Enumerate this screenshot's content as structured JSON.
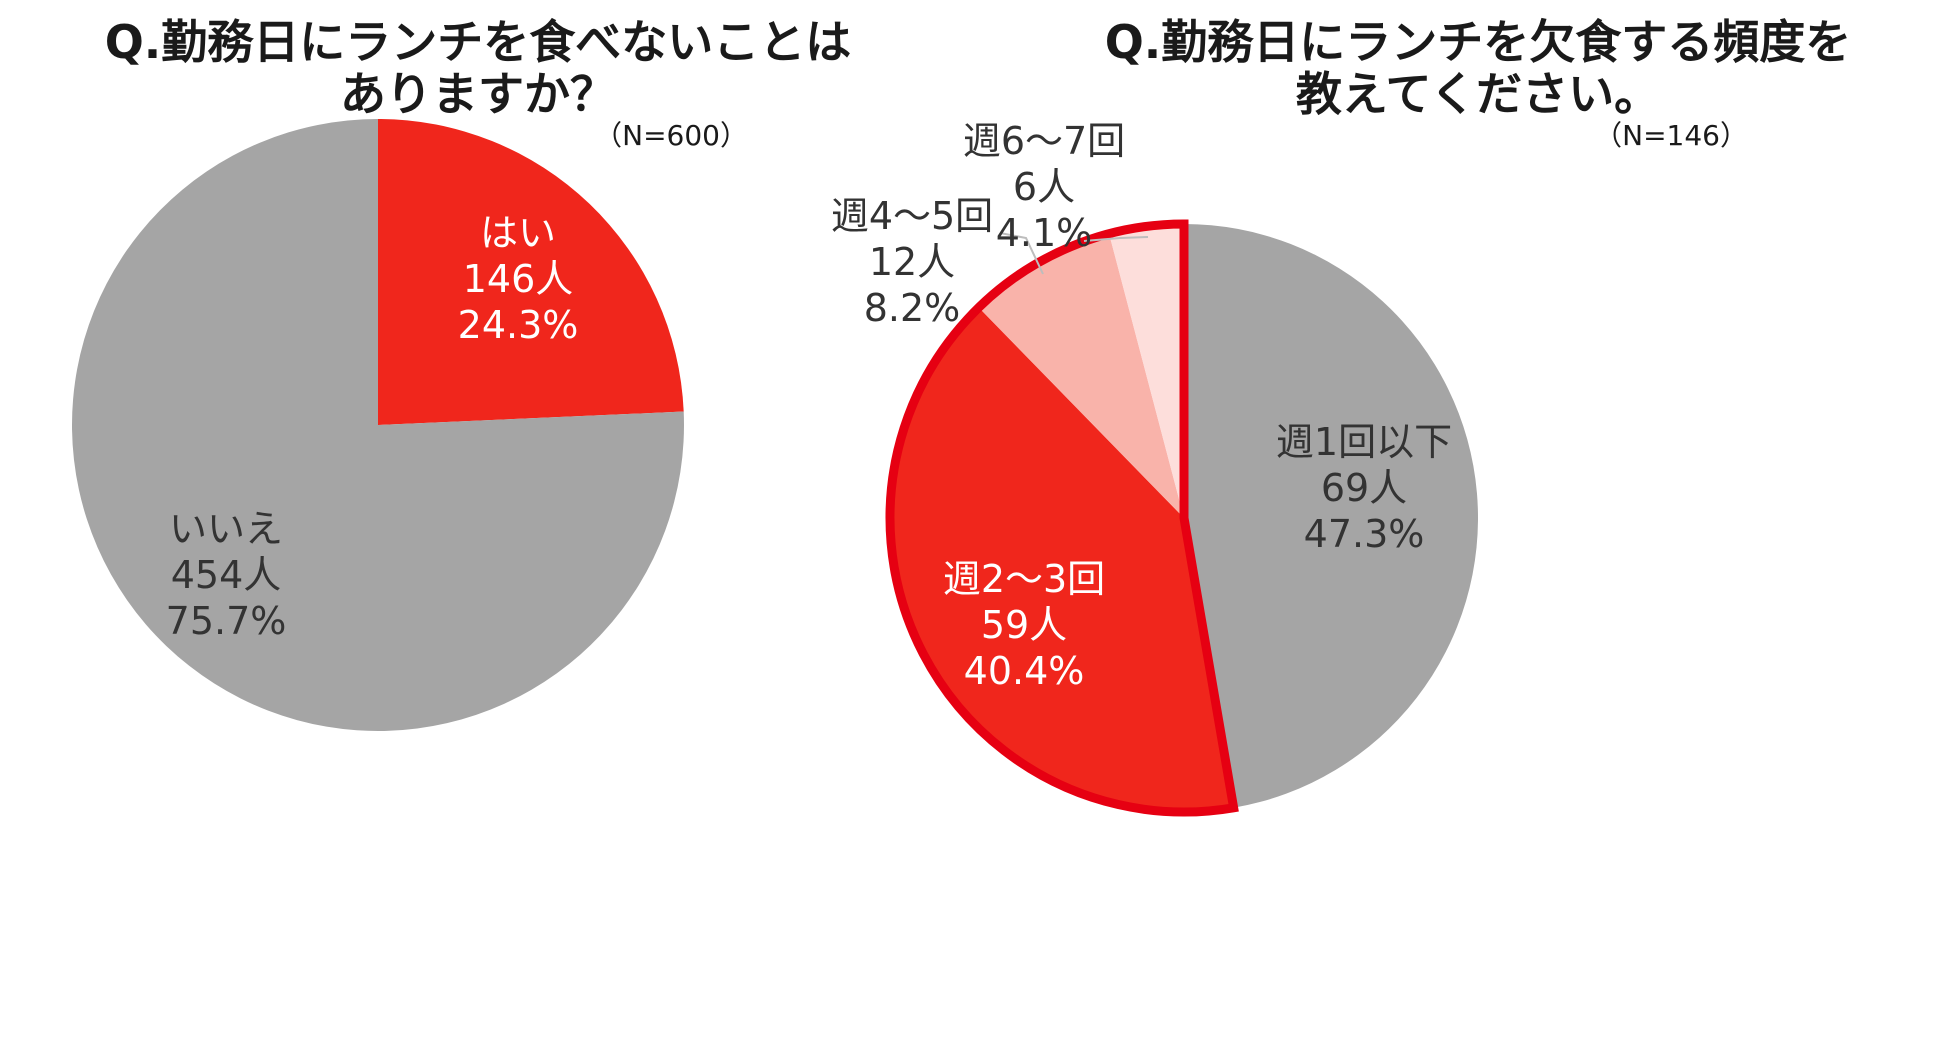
{
  "colors": {
    "gray": "#a5a5a5",
    "red": "#f0261c",
    "highlight_border": "#e60012",
    "salmon": "#f9b3aa",
    "pink": "#fddedb",
    "label_dark": "#333333",
    "label_white": "#ffffff"
  },
  "chart_data": [
    {
      "type": "pie",
      "title_lines": [
        "Q.勤務日にランチを食べないことは",
        "ありますか？"
      ],
      "n_label": "（N=600）",
      "start_angle_deg": 0,
      "direction": "clockwise",
      "slices": [
        {
          "label": "はい",
          "count": "146人",
          "percent_label": "24.3%",
          "value": 24.3,
          "color": "#f0261c",
          "label_color": "#ffffff"
        },
        {
          "label": "いいえ",
          "count": "454人",
          "percent_label": "75.7%",
          "value": 75.7,
          "color": "#a5a5a5",
          "label_color": "#333333"
        }
      ]
    },
    {
      "type": "pie",
      "title_lines": [
        "Q.勤務日にランチを欠食する頻度を",
        "教えてください。"
      ],
      "n_label": "（N=146）",
      "start_angle_deg": 0,
      "direction": "clockwise",
      "slices": [
        {
          "label": "週1回以下",
          "count": "69人",
          "percent_label": "47.3%",
          "value": 47.3,
          "color": "#a5a5a5",
          "label_color": "#333333"
        },
        {
          "label": "週2～3回",
          "count": "59人",
          "percent_label": "40.4%",
          "value": 40.4,
          "color": "#f0261c",
          "label_color": "#ffffff"
        },
        {
          "label": "週4～5回",
          "count": "12人",
          "percent_label": "8.2%",
          "value": 8.2,
          "color": "#f9b3aa",
          "label_color": "#333333"
        },
        {
          "label": "週6～7回",
          "count": "6人",
          "percent_label": "4.1%",
          "value": 4.1,
          "color": "#fddedb",
          "label_color": "#333333"
        }
      ],
      "highlighted_slices": [
        "週2～3回",
        "週4～5回",
        "週6～7回"
      ]
    }
  ]
}
